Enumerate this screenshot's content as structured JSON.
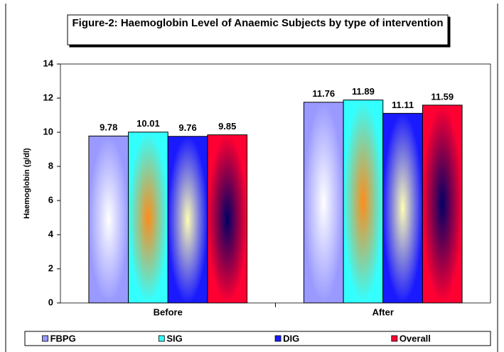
{
  "chart_data": {
    "type": "bar",
    "title": "Figure-2: Haemoglobin Level of Anaemic Subjects by type of intervention",
    "y_label": "Haemoglobin (g/dl)",
    "categories": [
      "Before",
      "After"
    ],
    "series": [
      {
        "name": "FBPG",
        "color": "#9999ff",
        "values": [
          9.78,
          11.76
        ]
      },
      {
        "name": "SIG",
        "color": "#33ffff",
        "values": [
          10.01,
          11.89
        ]
      },
      {
        "name": "DIG",
        "color": "#1a1aff",
        "values": [
          9.76,
          11.11
        ]
      },
      {
        "name": "Overall",
        "color": "#ff0033",
        "values": [
          9.85,
          11.59
        ]
      }
    ],
    "ylim": [
      0,
      14
    ],
    "yticks": [
      0,
      2,
      4,
      6,
      8,
      10,
      12,
      14
    ],
    "grid": false,
    "legend": "bottom"
  }
}
